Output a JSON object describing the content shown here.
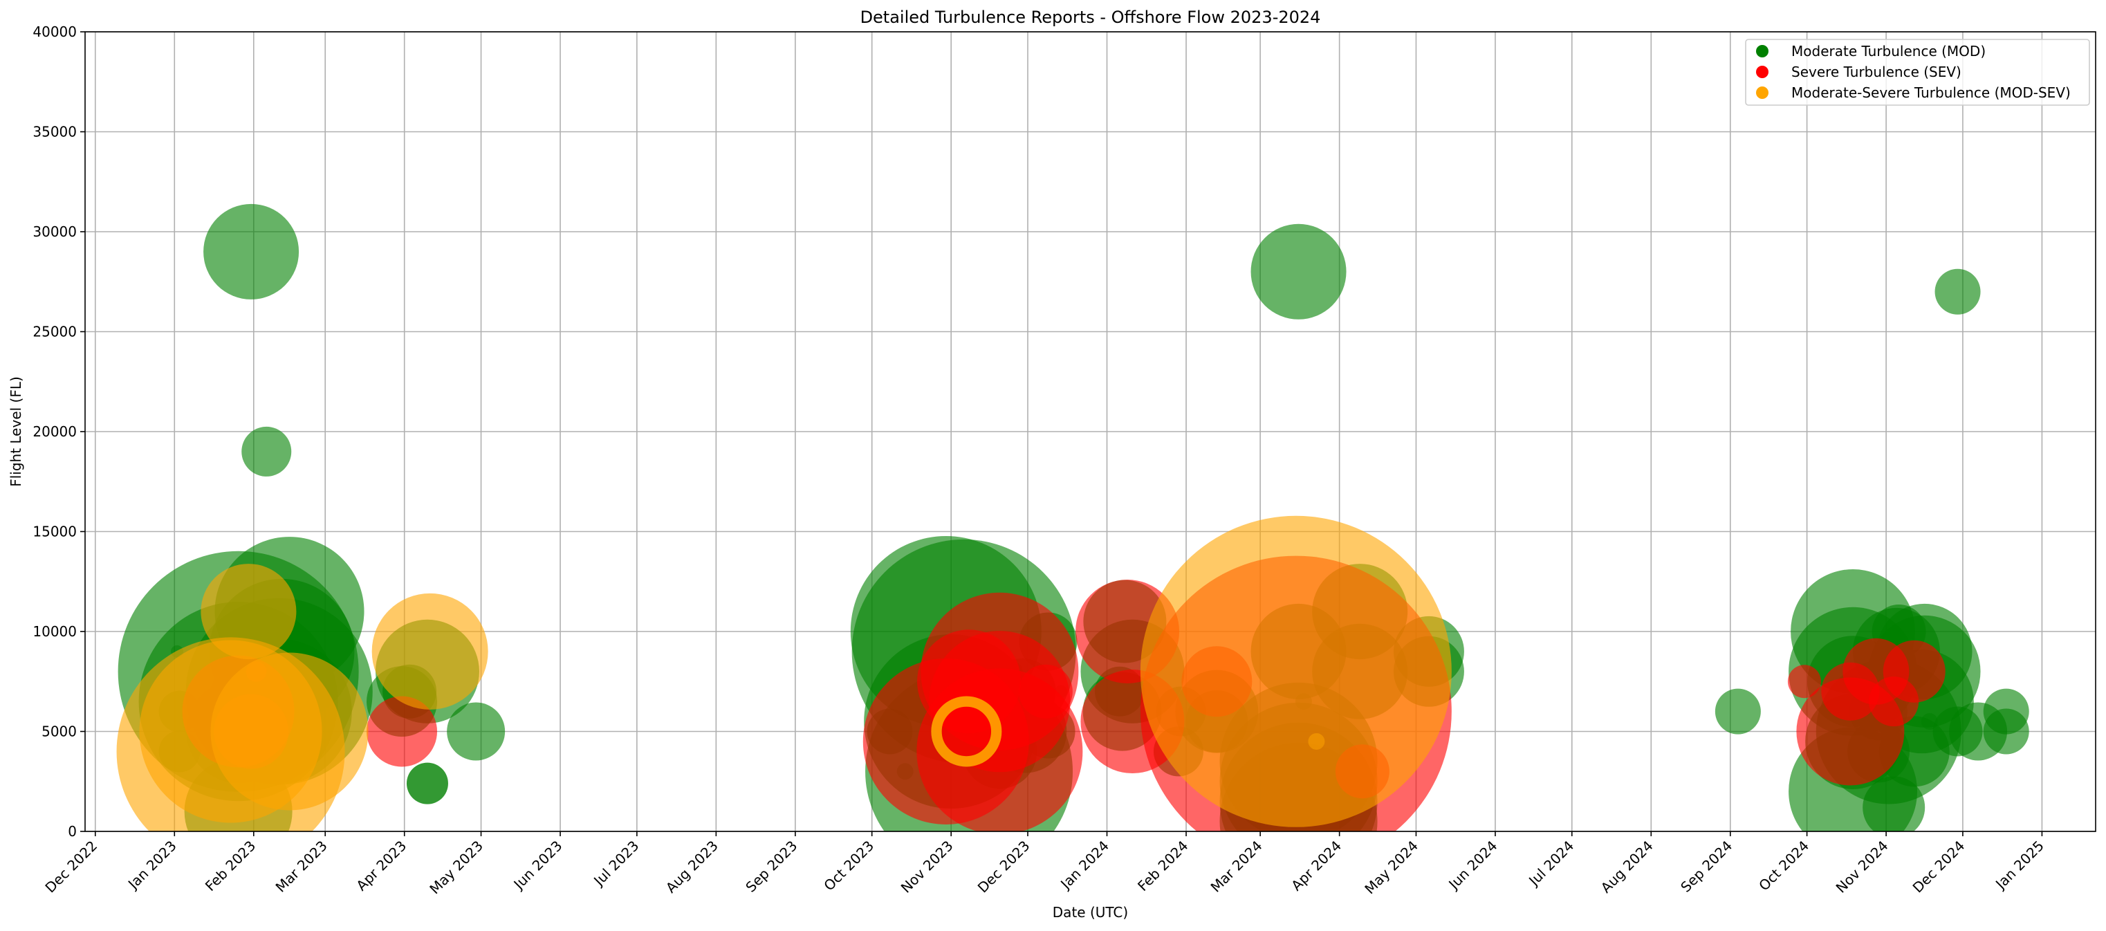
{
  "chart_data": {
    "type": "scatter",
    "title": "Detailed Turbulence Reports - Offshore Flow 2023-2024",
    "xlabel": "Date (UTC)",
    "ylabel": "Flight Level (FL)",
    "xlim": [
      "2022-11-27",
      "2025-01-22"
    ],
    "ylim": [
      0,
      40000
    ],
    "yticks": [
      0,
      5000,
      10000,
      15000,
      20000,
      25000,
      30000,
      35000,
      40000
    ],
    "xticks": [
      {
        "date": "2022-12-01",
        "label": "Dec 2022"
      },
      {
        "date": "2023-01-01",
        "label": "Jan 2023"
      },
      {
        "date": "2023-02-01",
        "label": "Feb 2023"
      },
      {
        "date": "2023-03-01",
        "label": "Mar 2023"
      },
      {
        "date": "2023-04-01",
        "label": "Apr 2023"
      },
      {
        "date": "2023-05-01",
        "label": "May 2023"
      },
      {
        "date": "2023-06-01",
        "label": "Jun 2023"
      },
      {
        "date": "2023-07-01",
        "label": "Jul 2023"
      },
      {
        "date": "2023-08-01",
        "label": "Aug 2023"
      },
      {
        "date": "2023-09-01",
        "label": "Sep 2023"
      },
      {
        "date": "2023-10-01",
        "label": "Oct 2023"
      },
      {
        "date": "2023-11-01",
        "label": "Nov 2023"
      },
      {
        "date": "2023-12-01",
        "label": "Dec 2023"
      },
      {
        "date": "2024-01-01",
        "label": "Jan 2024"
      },
      {
        "date": "2024-02-01",
        "label": "Feb 2024"
      },
      {
        "date": "2024-03-01",
        "label": "Mar 2024"
      },
      {
        "date": "2024-04-01",
        "label": "Apr 2024"
      },
      {
        "date": "2024-05-01",
        "label": "May 2024"
      },
      {
        "date": "2024-06-01",
        "label": "Jun 2024"
      },
      {
        "date": "2024-07-01",
        "label": "Jul 2024"
      },
      {
        "date": "2024-08-01",
        "label": "Aug 2024"
      },
      {
        "date": "2024-09-01",
        "label": "Sep 2024"
      },
      {
        "date": "2024-10-01",
        "label": "Oct 2024"
      },
      {
        "date": "2024-11-01",
        "label": "Nov 2024"
      },
      {
        "date": "2024-12-01",
        "label": "Dec 2024"
      },
      {
        "date": "2025-01-01",
        "label": "Jan 2025"
      }
    ],
    "grid": true,
    "legend_position": "top-right",
    "point_alpha": 0.6,
    "series": [
      {
        "name": "Moderate Turbulence (MOD)",
        "color": "#008000",
        "points": [
          {
            "x": "2023-01-03",
            "y": 4000,
            "size": 1,
            "alpha": 0.8
          },
          {
            "x": "2023-01-03",
            "y": 6000,
            "size": 1,
            "alpha": 0.8
          },
          {
            "x": "2023-01-02",
            "y": 9000,
            "size": 0.3,
            "alpha": 0.4
          },
          {
            "x": "2023-01-26",
            "y": 1000,
            "size": 2.6
          },
          {
            "x": "2023-01-26",
            "y": 5000,
            "size": 2.5
          },
          {
            "x": "2023-01-26",
            "y": 6500,
            "size": 4.8
          },
          {
            "x": "2023-01-26",
            "y": 8000,
            "size": 5.8
          },
          {
            "x": "2023-01-31",
            "y": 29000,
            "size": 2.3
          },
          {
            "x": "2023-02-06",
            "y": 19000,
            "size": 1.2
          },
          {
            "x": "2023-02-11",
            "y": 6000,
            "size": 3.5
          },
          {
            "x": "2023-02-11",
            "y": 7000,
            "size": 4.5
          },
          {
            "x": "2023-02-12",
            "y": 9000,
            "size": 3.5
          },
          {
            "x": "2023-02-15",
            "y": 11000,
            "size": 3.6
          },
          {
            "x": "2023-03-31",
            "y": 6500,
            "size": 1.7
          },
          {
            "x": "2023-04-03",
            "y": 7000,
            "size": 1.3
          },
          {
            "x": "2023-04-10",
            "y": 8000,
            "size": 2.5
          },
          {
            "x": "2023-04-10",
            "y": 2400,
            "size": 1,
            "alpha": 0.8
          },
          {
            "x": "2023-04-29",
            "y": 5000,
            "size": 1.4
          },
          {
            "x": "2023-10-08",
            "y": 5000,
            "size": 1.1
          },
          {
            "x": "2023-10-14",
            "y": 3000,
            "size": 0.4,
            "alpha": 0.4
          },
          {
            "x": "2023-11-01",
            "y": 5500,
            "size": 4.2
          },
          {
            "x": "2023-10-30",
            "y": 10000,
            "size": 4.6
          },
          {
            "x": "2023-11-06",
            "y": 9000,
            "size": 5.4
          },
          {
            "x": "2023-11-08",
            "y": 3000,
            "size": 5.0
          },
          {
            "x": "2023-11-20",
            "y": 4000,
            "size": 1.8
          },
          {
            "x": "2023-11-25",
            "y": 8000,
            "size": 0.5
          },
          {
            "x": "2023-11-29",
            "y": 7000,
            "size": 1.6
          },
          {
            "x": "2023-11-30",
            "y": 5000,
            "size": 2.0
          },
          {
            "x": "2023-12-09",
            "y": 5000,
            "size": 1.3
          },
          {
            "x": "2023-12-09",
            "y": 9500,
            "size": 1.4
          },
          {
            "x": "2023-12-14",
            "y": 7000,
            "size": 0.3,
            "alpha": 0.4
          },
          {
            "x": "2024-01-06",
            "y": 7000,
            "size": 1.2
          },
          {
            "x": "2024-01-07",
            "y": 6000,
            "size": 1.9
          },
          {
            "x": "2024-01-08",
            "y": 10500,
            "size": 2.0
          },
          {
            "x": "2024-01-11",
            "y": 8000,
            "size": 2.5
          },
          {
            "x": "2024-01-29",
            "y": 4000,
            "size": 1.2
          },
          {
            "x": "2024-01-30",
            "y": 6000,
            "size": 1.2
          },
          {
            "x": "2024-02-13",
            "y": 6000,
            "size": 2.0
          },
          {
            "x": "2024-02-13",
            "y": 5500,
            "size": 1.5
          },
          {
            "x": "2024-03-16",
            "y": 500,
            "size": 3.8
          },
          {
            "x": "2024-03-16",
            "y": 1500,
            "size": 3.8
          },
          {
            "x": "2024-03-16",
            "y": 2500,
            "size": 3.8
          },
          {
            "x": "2024-03-16",
            "y": 3500,
            "size": 3.8
          },
          {
            "x": "2024-03-16",
            "y": 28000,
            "size": 2.3
          },
          {
            "x": "2024-03-16",
            "y": 9000,
            "size": 2.3
          },
          {
            "x": "2024-03-18",
            "y": 6500,
            "size": 0.4,
            "alpha": 0.5
          },
          {
            "x": "2024-04-09",
            "y": 8000,
            "size": 2.3
          },
          {
            "x": "2024-04-09",
            "y": 11000,
            "size": 2.3
          },
          {
            "x": "2024-05-06",
            "y": 8000,
            "size": 1.7
          },
          {
            "x": "2024-05-06",
            "y": 9000,
            "size": 1.7
          },
          {
            "x": "2024-09-04",
            "y": 6000,
            "size": 1.1
          },
          {
            "x": "2024-10-19",
            "y": 2000,
            "size": 3.1
          },
          {
            "x": "2024-10-19",
            "y": 4500,
            "size": 2.3
          },
          {
            "x": "2024-10-19",
            "y": 7500,
            "size": 2.2
          },
          {
            "x": "2024-10-19",
            "y": 8000,
            "size": 3.1
          },
          {
            "x": "2024-10-19",
            "y": 10000,
            "size": 3.0
          },
          {
            "x": "2024-10-29",
            "y": 6000,
            "size": 1.4
          },
          {
            "x": "2024-10-29",
            "y": 4000,
            "size": 1.5
          },
          {
            "x": "2024-11-02",
            "y": 5000,
            "size": 3.5
          },
          {
            "x": "2024-11-05",
            "y": 9000,
            "size": 2.1
          },
          {
            "x": "2024-11-06",
            "y": 10000,
            "size": 1.3
          },
          {
            "x": "2024-11-04",
            "y": 1200,
            "size": 1.5
          },
          {
            "x": "2024-11-12",
            "y": 4000,
            "size": 1.7
          },
          {
            "x": "2024-11-15",
            "y": 6500,
            "size": 2.5
          },
          {
            "x": "2024-11-16",
            "y": 8000,
            "size": 2.7
          },
          {
            "x": "2024-11-16",
            "y": 9000,
            "size": 2.3
          },
          {
            "x": "2024-11-18",
            "y": 5500,
            "size": 0.4,
            "alpha": 0.5
          },
          {
            "x": "2024-11-29",
            "y": 27000,
            "size": 1.1
          },
          {
            "x": "2024-11-29",
            "y": 5000,
            "size": 1.2
          },
          {
            "x": "2024-12-07",
            "y": 5000,
            "size": 1.4
          },
          {
            "x": "2024-12-18",
            "y": 5000,
            "size": 1.1
          },
          {
            "x": "2024-12-18",
            "y": 6000,
            "size": 1.1
          }
        ]
      },
      {
        "name": "Severe Turbulence (SEV)",
        "color": "#FF0000",
        "points": [
          {
            "x": "2023-01-26",
            "y": 6000,
            "size": 2.7
          },
          {
            "x": "2023-01-31",
            "y": 5000,
            "size": 1.8
          },
          {
            "x": "2023-02-02",
            "y": 8000,
            "size": 0.5
          },
          {
            "x": "2023-03-31",
            "y": 5000,
            "size": 1.7
          },
          {
            "x": "2023-10-30",
            "y": 4500,
            "size": 4.0
          },
          {
            "x": "2023-11-08",
            "y": 7500,
            "size": 2.5
          },
          {
            "x": "2023-11-20",
            "y": 8000,
            "size": 3.8
          },
          {
            "x": "2023-11-20",
            "y": 6500,
            "size": 3.4
          },
          {
            "x": "2023-11-20",
            "y": 4000,
            "size": 4.0
          },
          {
            "x": "2023-12-08",
            "y": 7000,
            "size": 1.3
          },
          {
            "x": "2024-01-09",
            "y": 10000,
            "size": 2.5
          },
          {
            "x": "2024-01-11",
            "y": 5500,
            "size": 2.5
          },
          {
            "x": "2024-02-13",
            "y": 7500,
            "size": 1.7
          },
          {
            "x": "2024-03-15",
            "y": 6000,
            "size": 7.5
          },
          {
            "x": "2024-04-10",
            "y": 3000,
            "size": 1.3
          },
          {
            "x": "2024-09-30",
            "y": 7500,
            "size": 0.8
          },
          {
            "x": "2024-10-18",
            "y": 5000,
            "size": 2.6
          },
          {
            "x": "2024-10-18",
            "y": 7000,
            "size": 1.4
          },
          {
            "x": "2024-10-28",
            "y": 8000,
            "size": 1.6
          },
          {
            "x": "2024-11-04",
            "y": 6500,
            "size": 1.2
          },
          {
            "x": "2024-11-12",
            "y": 8000,
            "size": 1.5
          }
        ]
      },
      {
        "name": "Moderate-Severe Turbulence (MOD-SEV)",
        "color": "#FFA500",
        "points": [
          {
            "x": "2023-01-23",
            "y": 4000,
            "size": 5.5
          },
          {
            "x": "2023-01-23",
            "y": 5000,
            "size": 4.4
          },
          {
            "x": "2023-01-30",
            "y": 11000,
            "size": 2.3
          },
          {
            "x": "2023-02-15",
            "y": 5000,
            "size": 3.8
          },
          {
            "x": "2023-04-11",
            "y": 9000,
            "size": 2.8
          },
          {
            "x": "2023-11-07",
            "y": 5000,
            "size": 1.7,
            "ring": true
          },
          {
            "x": "2024-03-15",
            "y": 8000,
            "size": 7.5
          },
          {
            "x": "2024-03-23",
            "y": 4500,
            "size": 0.4,
            "alpha": 0.5
          }
        ]
      }
    ]
  }
}
